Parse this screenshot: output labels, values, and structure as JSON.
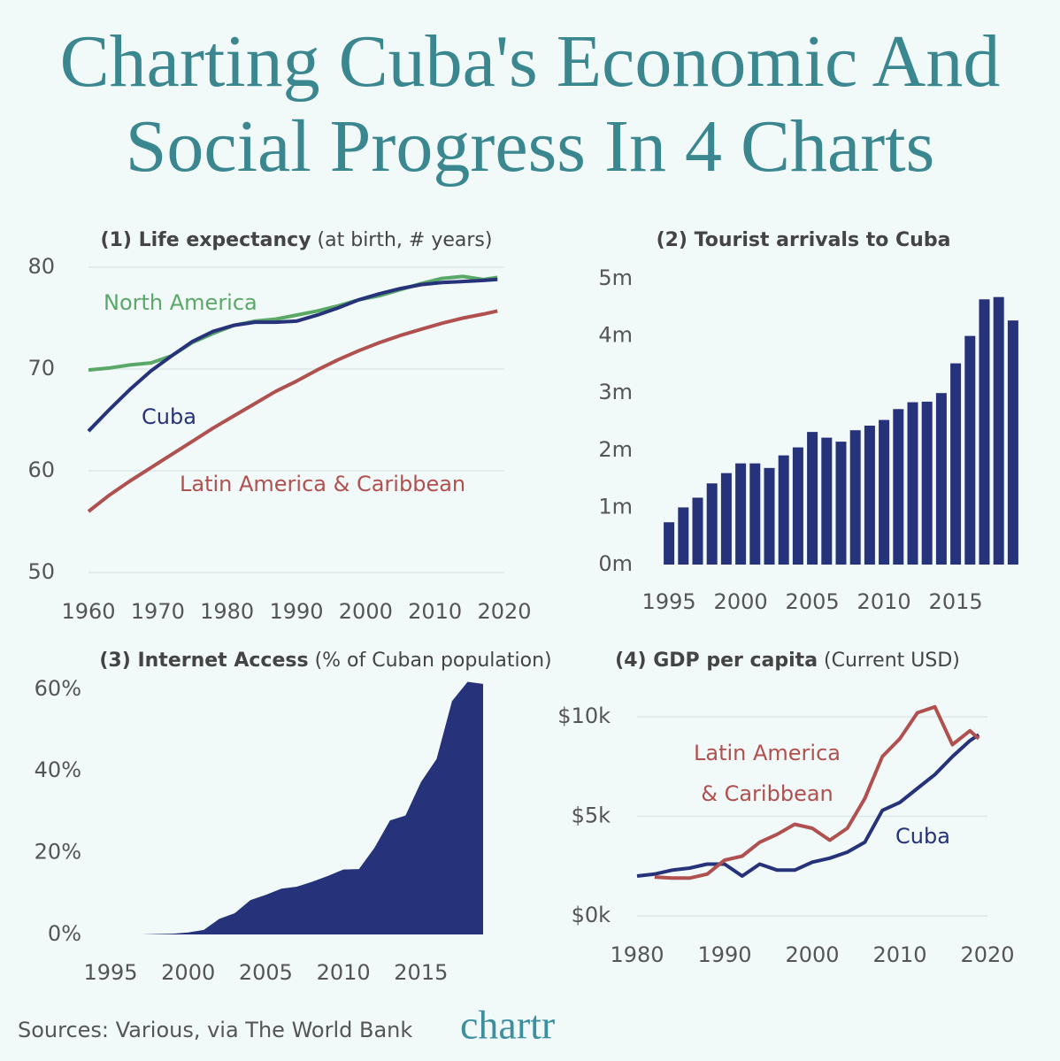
{
  "title": "Charting Cuba's Economic And Social Progress In 4 Charts",
  "source": "Sources: Various, via The World Bank",
  "logo": "chartr",
  "chart_data": [
    {
      "type": "line",
      "title": "(1) Life expectancy",
      "subtitle": "(at birth, # years)",
      "x": [
        1960,
        1963,
        1966,
        1969,
        1972,
        1975,
        1978,
        1981,
        1984,
        1987,
        1990,
        1993,
        1996,
        1999,
        2002,
        2005,
        2008,
        2011,
        2014,
        2017,
        2019
      ],
      "series": [
        {
          "name": "North America",
          "color": "#5aa867",
          "values": [
            69.9,
            70.1,
            70.4,
            70.6,
            71.3,
            72.6,
            73.5,
            74.3,
            74.7,
            74.9,
            75.3,
            75.7,
            76.2,
            76.8,
            77.2,
            77.8,
            78.4,
            78.9,
            79.1,
            78.8,
            79.0
          ]
        },
        {
          "name": "Cuba",
          "color": "#26327a",
          "values": [
            63.9,
            66.0,
            68.0,
            69.8,
            71.3,
            72.7,
            73.7,
            74.3,
            74.6,
            74.6,
            74.7,
            75.3,
            76.0,
            76.8,
            77.4,
            77.9,
            78.3,
            78.5,
            78.6,
            78.7,
            78.8
          ]
        },
        {
          "name": "Latin America & Caribbean",
          "color": "#b0504f",
          "values": [
            56.0,
            57.6,
            59.0,
            60.3,
            61.6,
            62.9,
            64.2,
            65.4,
            66.6,
            67.8,
            68.8,
            69.9,
            70.9,
            71.8,
            72.6,
            73.3,
            73.9,
            74.5,
            75.0,
            75.4,
            75.7
          ]
        }
      ],
      "xlim": [
        1960,
        2020
      ],
      "xticks": [
        1960,
        1970,
        1980,
        1990,
        2000,
        2010,
        2020
      ],
      "ylim": [
        50,
        80
      ],
      "yticks": [
        50,
        60,
        70,
        80
      ],
      "grid": true
    },
    {
      "type": "bar",
      "title": "(2) Tourist arrivals to Cuba",
      "categories": [
        "1995",
        null,
        null,
        null,
        null,
        "2000",
        null,
        null,
        null,
        null,
        "2005",
        null,
        null,
        null,
        null,
        "2010",
        null,
        null,
        null,
        null,
        "2015",
        null,
        null,
        null,
        null
      ],
      "values": [
        0.74,
        1.0,
        1.17,
        1.42,
        1.6,
        1.77,
        1.77,
        1.69,
        1.91,
        2.05,
        2.32,
        2.22,
        2.15,
        2.35,
        2.43,
        2.53,
        2.72,
        2.84,
        2.85,
        3.0,
        3.52,
        4.0,
        4.64,
        4.68,
        4.27
      ],
      "color": "#26327a",
      "ylim": [
        0,
        5
      ],
      "yticks": [
        {
          "value": 0,
          "label": "0m"
        },
        {
          "value": 1,
          "label": "1m"
        },
        {
          "value": 2,
          "label": "2m"
        },
        {
          "value": 3,
          "label": "3m"
        },
        {
          "value": 4,
          "label": "4m"
        },
        {
          "value": 5,
          "label": "5m"
        }
      ],
      "grid": false
    },
    {
      "type": "area",
      "title": "(3) Internet Access",
      "subtitle": "(% of Cuban population)",
      "x": [
        1995,
        1996,
        1997,
        1998,
        1999,
        2000,
        2001,
        2002,
        2003,
        2004,
        2005,
        2006,
        2007,
        2008,
        2009,
        2010,
        2011,
        2012,
        2013,
        2014,
        2015,
        2016,
        2017,
        2018,
        2019
      ],
      "values": [
        0,
        0,
        0,
        0.1,
        0.2,
        0.5,
        1.1,
        3.8,
        5.2,
        8.4,
        9.7,
        11.2,
        11.7,
        12.9,
        14.3,
        15.9,
        16.0,
        21.2,
        27.9,
        29.1,
        37.3,
        42.9,
        57.1,
        61.8,
        61.3
      ],
      "color": "#26327a",
      "xlim": [
        1995,
        2019
      ],
      "xticks": [
        1995,
        2000,
        2005,
        2010,
        2015
      ],
      "ylim": [
        0,
        63
      ],
      "yticks": [
        {
          "value": 0,
          "label": "0%"
        },
        {
          "value": 20,
          "label": "20%"
        },
        {
          "value": 40,
          "label": "40%"
        },
        {
          "value": 60,
          "label": "60%"
        }
      ],
      "grid": false
    },
    {
      "type": "line",
      "title": "(4) GDP per capita",
      "subtitle": "(Current USD)",
      "x": [
        1980,
        1982,
        1984,
        1986,
        1988,
        1990,
        1992,
        1994,
        1996,
        1998,
        2000,
        2002,
        2004,
        2006,
        2008,
        2010,
        2012,
        2014,
        2016,
        2018,
        2019
      ],
      "series": [
        {
          "name": "Cuba",
          "color": "#26327a",
          "values": [
            2000,
            2100,
            2300,
            2400,
            2600,
            2600,
            2000,
            2600,
            2300,
            2300,
            2700,
            2900,
            3200,
            3700,
            5300,
            5700,
            6400,
            7100,
            8000,
            8800,
            9100
          ]
        },
        {
          "name": "Latin America & Caribbean",
          "color": "#b0504f",
          "values": [
            null,
            1950,
            1900,
            1900,
            2100,
            2800,
            3000,
            3700,
            4100,
            4600,
            4400,
            3800,
            4400,
            5900,
            8000,
            8900,
            10200,
            10500,
            8600,
            9300,
            8900
          ]
        }
      ],
      "xlim": [
        1980,
        2020
      ],
      "xticks": [
        1980,
        1990,
        2000,
        2010,
        2020
      ],
      "ylim": [
        0,
        11000
      ],
      "yticks": [
        {
          "value": 0,
          "label": "$0k"
        },
        {
          "value": 5000,
          "label": "$5k"
        },
        {
          "value": 10000,
          "label": "$10k"
        }
      ],
      "grid": true
    }
  ]
}
